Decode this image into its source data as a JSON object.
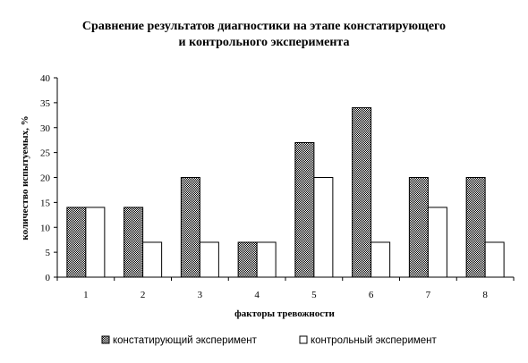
{
  "chart_data": {
    "type": "bar",
    "title": "Сравнение результатов диагностики на этапе констатирующего и контрольного эксперимента",
    "title_lines": [
      "Сравнение результатов диагностики на этапе констатирующего",
      "и контрольного эксперимента"
    ],
    "xlabel": "факторы тревожности",
    "ylabel": "количество испытуемых, %",
    "categories": [
      "1",
      "2",
      "3",
      "4",
      "5",
      "6",
      "7",
      "8"
    ],
    "series": [
      {
        "name": "констатирующий эксперимент",
        "pattern": "dense-checker",
        "values": [
          14,
          14,
          20,
          7,
          27,
          34,
          20,
          20
        ]
      },
      {
        "name": "контрольный эксперимент",
        "pattern": "white",
        "values": [
          14,
          7,
          7,
          7,
          20,
          7,
          14,
          7
        ]
      }
    ],
    "ylim": [
      0,
      40
    ],
    "yticks": [
      0,
      5,
      10,
      15,
      20,
      25,
      30,
      35,
      40
    ],
    "grid": false,
    "legend_position": "bottom"
  }
}
